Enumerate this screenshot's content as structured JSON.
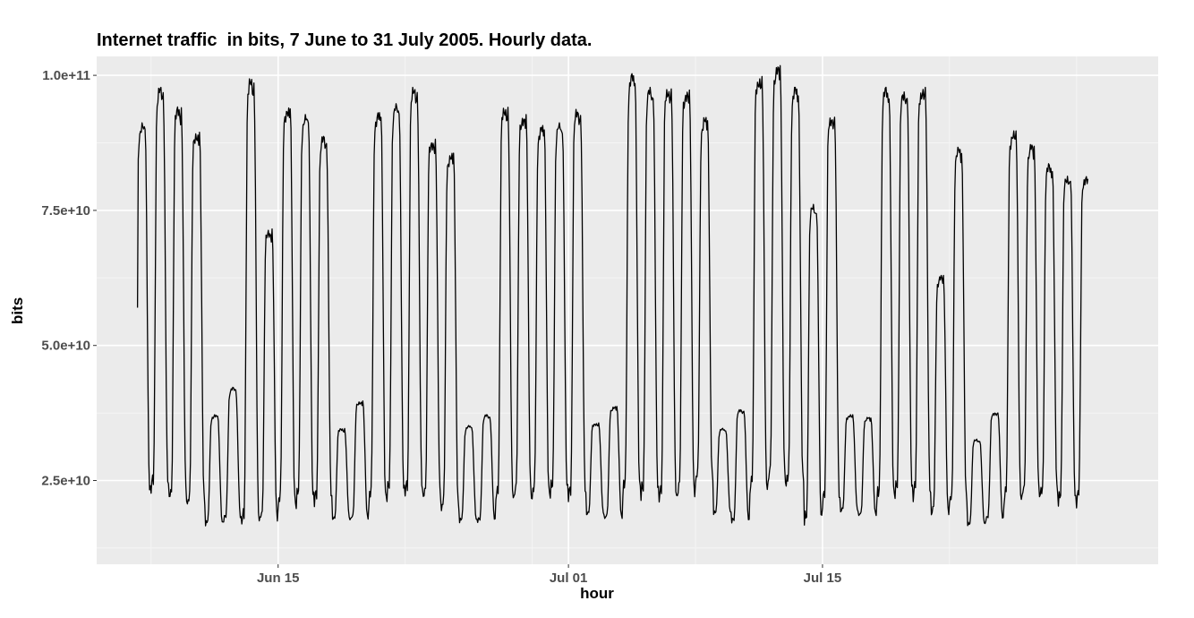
{
  "chart_data": {
    "type": "line",
    "title": "Internet traffic  in bits, 7 June to 31 July 2005. Hourly data.",
    "xlabel": "hour",
    "ylabel": "bits",
    "x_range": [
      "2005-06-05T00:00",
      "2005-08-02T12:00"
    ],
    "ylim": [
      9500000000,
      103500000000
    ],
    "x_ticks": [
      {
        "date": "2005-06-15",
        "label": "Jun 15"
      },
      {
        "date": "2005-07-01",
        "label": "Jul 01"
      },
      {
        "date": "2005-07-15",
        "label": "Jul 15"
      }
    ],
    "x_minor_ticks": [
      "2005-06-08",
      "2005-06-22",
      "2005-06-29",
      "2005-07-08",
      "2005-07-22",
      "2005-07-29"
    ],
    "y_ticks": [
      {
        "value": 25000000000,
        "label": "2.5e+10"
      },
      {
        "value": 50000000000,
        "label": "5.0e+10"
      },
      {
        "value": 75000000000,
        "label": "7.5e+10"
      },
      {
        "value": 100000000000,
        "label": "1.0e+11"
      }
    ],
    "grid": true,
    "background": "#ebebeb",
    "line_color": "#000000",
    "series": [
      {
        "x_start": "2005-06-07T06:00",
        "x_step_hours": 1,
        "daily_peaks": [
          90500000000.0,
          97000000000.0,
          93500000000.0,
          89000000000.0,
          37000000000.0,
          42000000000.0,
          98500000000.0,
          71000000000.0,
          93500000000.0,
          92000000000.0,
          88000000000.0,
          34500000000.0,
          39500000000.0,
          92500000000.0,
          94000000000.0,
          97000000000.0,
          87500000000.0,
          85000000000.0,
          35000000000.0,
          37000000000.0,
          93500000000.0,
          92000000000.0,
          90000000000.0,
          90500000000.0,
          93000000000.0,
          35500000000.0,
          38500000000.0,
          99500000000.0,
          97000000000.0,
          97000000000.0,
          96500000000.0,
          91500000000.0,
          34500000000.0,
          38000000000.0,
          99000000000.0,
          101000000000.0,
          97000000000.0,
          75500000000.0,
          92000000000.0,
          37000000000.0,
          36500000000.0,
          97000000000.0,
          96500000000.0,
          97000000000.0,
          62500000000.0,
          86000000000.0,
          32500000000.0,
          37500000000.0,
          89000000000.0,
          86500000000.0,
          83000000000.0,
          81000000000.0,
          81000000000.0
        ],
        "daily_troughs": [
          19000000000.0,
          19500000000.0,
          18000000000.0,
          17500000000.0,
          16000000000.0,
          16500000000.0,
          13000000000.0,
          15500000000.0,
          17000000000.0,
          17500000000.0,
          17500000000.0,
          17000000000.0,
          17000000000.0,
          17500000000.0,
          18500000000.0,
          19000000000.0,
          19000000000.0,
          16500000000.0,
          16500000000.0,
          16500000000.0,
          18500000000.0,
          19000000000.0,
          18500000000.0,
          19000000000.0,
          18500000000.0,
          18000000000.0,
          17000000000.0,
          18500000000.0,
          18500000000.0,
          18500000000.0,
          19000000000.0,
          21000000000.0,
          18000000000.0,
          16500000000.0,
          20000000000.0,
          21000000000.0,
          20000000000.0,
          14500000000.0,
          18000000000.0,
          18500000000.0,
          17500000000.0,
          17500000000.0,
          19500000000.0,
          19000000000.0,
          16500000000.0,
          17000000000.0,
          16000000000.0,
          17000000000.0,
          18000000000.0,
          18500000000.0,
          19000000000.0,
          18500000000.0,
          18500000000.0
        ]
      }
    ]
  }
}
